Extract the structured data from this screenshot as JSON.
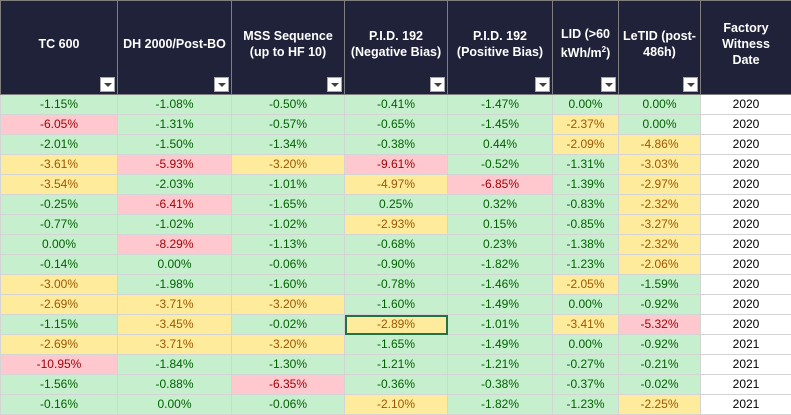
{
  "columns": [
    {
      "label_lines": [
        "TC 600"
      ]
    },
    {
      "label_lines": [
        "DH 2000/Post-BO"
      ]
    },
    {
      "label_lines": [
        "MSS  Sequence",
        "(up to HF 10)"
      ]
    },
    {
      "label_lines": [
        "P.I.D. 192",
        "(Negative Bias)"
      ]
    },
    {
      "label_lines": [
        "P.I.D. 192",
        "(Positive Bias)"
      ]
    },
    {
      "label_lines": [
        "LID (>60",
        "kWh/m",
        "2",
        ")"
      ],
      "superscript": true
    },
    {
      "label_lines": [
        "LeTID (post-",
        "486h)"
      ]
    },
    {
      "label_lines": [
        "Factory",
        "Witness",
        "Date"
      ]
    }
  ],
  "status_colors": {
    "g": "#c6efce",
    "y": "#ffeb9c",
    "r": "#ffc7ce",
    "w": "#ffffff"
  },
  "rows": [
    {
      "cells": [
        {
          "v": "-1.15%",
          "s": "g"
        },
        {
          "v": "-1.08%",
          "s": "g"
        },
        {
          "v": "-0.50%",
          "s": "g"
        },
        {
          "v": "-0.41%",
          "s": "g"
        },
        {
          "v": "-1.47%",
          "s": "g"
        },
        {
          "v": "0.00%",
          "s": "g"
        },
        {
          "v": "0.00%",
          "s": "g"
        },
        {
          "v": "2020",
          "s": "w"
        }
      ]
    },
    {
      "cells": [
        {
          "v": "-6.05%",
          "s": "r"
        },
        {
          "v": "-1.31%",
          "s": "g"
        },
        {
          "v": "-0.57%",
          "s": "g"
        },
        {
          "v": "-0.65%",
          "s": "g"
        },
        {
          "v": "-1.45%",
          "s": "g"
        },
        {
          "v": "-2.37%",
          "s": "y"
        },
        {
          "v": "0.00%",
          "s": "g"
        },
        {
          "v": "2020",
          "s": "w"
        }
      ]
    },
    {
      "cells": [
        {
          "v": "-2.01%",
          "s": "g"
        },
        {
          "v": "-1.50%",
          "s": "g"
        },
        {
          "v": "-1.34%",
          "s": "g"
        },
        {
          "v": "-0.38%",
          "s": "g"
        },
        {
          "v": "0.44%",
          "s": "g"
        },
        {
          "v": "-2.09%",
          "s": "y"
        },
        {
          "v": "-4.86%",
          "s": "y"
        },
        {
          "v": "2020",
          "s": "w"
        }
      ]
    },
    {
      "cells": [
        {
          "v": "-3.61%",
          "s": "y"
        },
        {
          "v": "-5.93%",
          "s": "r"
        },
        {
          "v": "-3.20%",
          "s": "y"
        },
        {
          "v": "-9.61%",
          "s": "r"
        },
        {
          "v": "-0.52%",
          "s": "g"
        },
        {
          "v": "-1.31%",
          "s": "g"
        },
        {
          "v": "-3.03%",
          "s": "y"
        },
        {
          "v": "2020",
          "s": "w"
        }
      ]
    },
    {
      "cells": [
        {
          "v": "-3.54%",
          "s": "y"
        },
        {
          "v": "-2.03%",
          "s": "g"
        },
        {
          "v": "-1.01%",
          "s": "g"
        },
        {
          "v": "-4.97%",
          "s": "y"
        },
        {
          "v": "-6.85%",
          "s": "r"
        },
        {
          "v": "-1.39%",
          "s": "g"
        },
        {
          "v": "-2.97%",
          "s": "y"
        },
        {
          "v": "2020",
          "s": "w"
        }
      ]
    },
    {
      "cells": [
        {
          "v": "-0.25%",
          "s": "g"
        },
        {
          "v": "-6.41%",
          "s": "r"
        },
        {
          "v": "-1.65%",
          "s": "g"
        },
        {
          "v": "0.25%",
          "s": "g"
        },
        {
          "v": "0.32%",
          "s": "g"
        },
        {
          "v": "-0.83%",
          "s": "g"
        },
        {
          "v": "-2.32%",
          "s": "y"
        },
        {
          "v": "2020",
          "s": "w"
        }
      ]
    },
    {
      "cells": [
        {
          "v": "-0.77%",
          "s": "g"
        },
        {
          "v": "-1.02%",
          "s": "g"
        },
        {
          "v": "-1.02%",
          "s": "g"
        },
        {
          "v": "-2.93%",
          "s": "y"
        },
        {
          "v": "0.15%",
          "s": "g"
        },
        {
          "v": "-0.85%",
          "s": "g"
        },
        {
          "v": "-3.27%",
          "s": "y"
        },
        {
          "v": "2020",
          "s": "w"
        }
      ]
    },
    {
      "cells": [
        {
          "v": "0.00%",
          "s": "g"
        },
        {
          "v": "-8.29%",
          "s": "r"
        },
        {
          "v": "-1.13%",
          "s": "g"
        },
        {
          "v": "-0.68%",
          "s": "g"
        },
        {
          "v": "0.23%",
          "s": "g"
        },
        {
          "v": "-1.38%",
          "s": "g"
        },
        {
          "v": "-2.32%",
          "s": "y"
        },
        {
          "v": "2020",
          "s": "w"
        }
      ]
    },
    {
      "cells": [
        {
          "v": "-0.14%",
          "s": "g"
        },
        {
          "v": "0.00%",
          "s": "g"
        },
        {
          "v": "-0.06%",
          "s": "g"
        },
        {
          "v": "-0.90%",
          "s": "g"
        },
        {
          "v": "-1.82%",
          "s": "g"
        },
        {
          "v": "-1.23%",
          "s": "g"
        },
        {
          "v": "-2.06%",
          "s": "y"
        },
        {
          "v": "2020",
          "s": "w"
        }
      ]
    },
    {
      "cells": [
        {
          "v": "-3.00%",
          "s": "y"
        },
        {
          "v": "-1.98%",
          "s": "g"
        },
        {
          "v": "-1.60%",
          "s": "g"
        },
        {
          "v": "-0.78%",
          "s": "g"
        },
        {
          "v": "-1.46%",
          "s": "g"
        },
        {
          "v": "-2.05%",
          "s": "y"
        },
        {
          "v": "-1.59%",
          "s": "g"
        },
        {
          "v": "2020",
          "s": "w"
        }
      ]
    },
    {
      "cells": [
        {
          "v": "-2.69%",
          "s": "y"
        },
        {
          "v": "-3.71%",
          "s": "y"
        },
        {
          "v": "-3.20%",
          "s": "y"
        },
        {
          "v": "-1.60%",
          "s": "g"
        },
        {
          "v": "-1.49%",
          "s": "g"
        },
        {
          "v": "0.00%",
          "s": "g"
        },
        {
          "v": "-0.92%",
          "s": "g"
        },
        {
          "v": "2020",
          "s": "w"
        }
      ]
    },
    {
      "cells": [
        {
          "v": "-1.15%",
          "s": "g"
        },
        {
          "v": "-3.45%",
          "s": "y"
        },
        {
          "v": "-0.02%",
          "s": "g"
        },
        {
          "v": "-2.89%",
          "s": "y",
          "sel": true
        },
        {
          "v": "-1.01%",
          "s": "g"
        },
        {
          "v": "-3.41%",
          "s": "y"
        },
        {
          "v": "-5.32%",
          "s": "r"
        },
        {
          "v": "2020",
          "s": "w"
        }
      ]
    },
    {
      "cells": [
        {
          "v": "-2.69%",
          "s": "y"
        },
        {
          "v": "-3.71%",
          "s": "y"
        },
        {
          "v": "-3.20%",
          "s": "y"
        },
        {
          "v": "-1.65%",
          "s": "g"
        },
        {
          "v": "-1.49%",
          "s": "g"
        },
        {
          "v": "0.00%",
          "s": "g"
        },
        {
          "v": "-0.92%",
          "s": "g"
        },
        {
          "v": "2021",
          "s": "w"
        }
      ]
    },
    {
      "cells": [
        {
          "v": "-10.95%",
          "s": "r"
        },
        {
          "v": "-1.84%",
          "s": "g"
        },
        {
          "v": "-1.30%",
          "s": "g"
        },
        {
          "v": "-1.21%",
          "s": "g"
        },
        {
          "v": "-1.21%",
          "s": "g"
        },
        {
          "v": "-0.27%",
          "s": "g"
        },
        {
          "v": "-0.21%",
          "s": "g"
        },
        {
          "v": "2021",
          "s": "w"
        }
      ]
    },
    {
      "cells": [
        {
          "v": "-1.56%",
          "s": "g"
        },
        {
          "v": "-0.88%",
          "s": "g"
        },
        {
          "v": "-6.35%",
          "s": "r"
        },
        {
          "v": "-0.36%",
          "s": "g"
        },
        {
          "v": "-0.38%",
          "s": "g"
        },
        {
          "v": "-0.37%",
          "s": "g"
        },
        {
          "v": "-0.02%",
          "s": "g"
        },
        {
          "v": "2021",
          "s": "w"
        }
      ]
    },
    {
      "cells": [
        {
          "v": "-0.16%",
          "s": "g"
        },
        {
          "v": "0.00%",
          "s": "g"
        },
        {
          "v": "-0.06%",
          "s": "g"
        },
        {
          "v": "-2.10%",
          "s": "y"
        },
        {
          "v": "-1.82%",
          "s": "g"
        },
        {
          "v": "-1.23%",
          "s": "g"
        },
        {
          "v": "-2.25%",
          "s": "y"
        },
        {
          "v": "2021",
          "s": "w"
        }
      ]
    }
  ]
}
